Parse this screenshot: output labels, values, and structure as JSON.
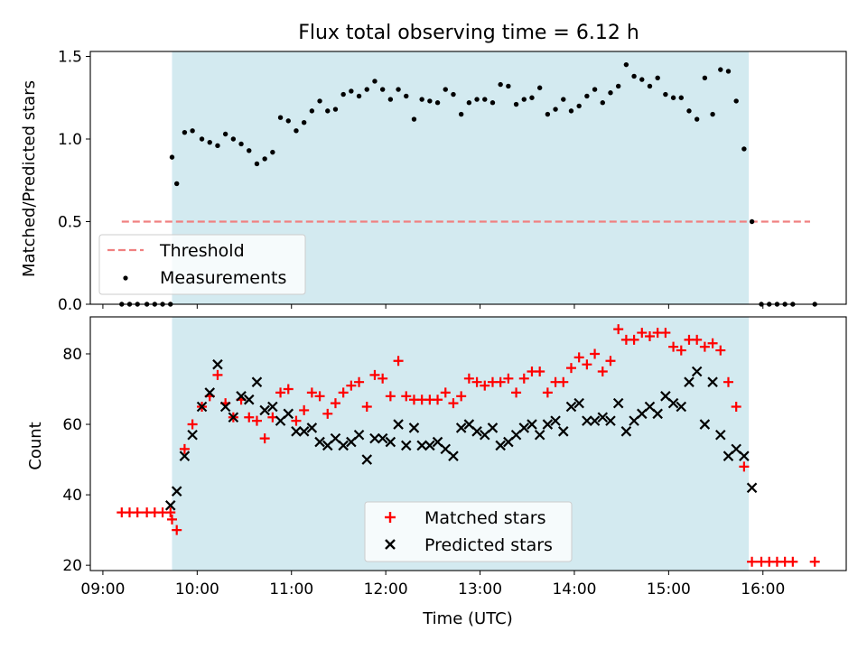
{
  "chart_data": [
    {
      "type": "scatter",
      "title": "Flux total observing time = 6.12 h",
      "ylabel": "Matched/Predicted stars",
      "xlabel": "",
      "xlim": [
        "08:52",
        "16:53"
      ],
      "ylim": [
        0,
        1.53
      ],
      "yticks": [
        "0.0",
        "0.5",
        "1.0",
        "1.5"
      ],
      "observing_window": [
        "09:44",
        "15:51"
      ],
      "shade_color": "#d3eaf0",
      "threshold": {
        "name": "Threshold",
        "value": 0.5,
        "x_range": [
          "09:12",
          "16:30"
        ],
        "color": "#f08080",
        "style": "dashed"
      },
      "series": [
        {
          "name": "Measurements",
          "color": "#000000",
          "marker": "dot",
          "x": [
            "09:12",
            "09:17",
            "09:22",
            "09:28",
            "09:33",
            "09:38",
            "09:43",
            "09:44",
            "09:47",
            "09:52",
            "09:57",
            "10:03",
            "10:08",
            "10:13",
            "10:18",
            "10:23",
            "10:28",
            "10:33",
            "10:38",
            "10:43",
            "10:48",
            "10:53",
            "10:58",
            "11:03",
            "11:08",
            "11:13",
            "11:18",
            "11:23",
            "11:28",
            "11:33",
            "11:38",
            "11:43",
            "11:48",
            "11:53",
            "11:58",
            "12:03",
            "12:08",
            "12:13",
            "12:18",
            "12:23",
            "12:28",
            "12:33",
            "12:38",
            "12:43",
            "12:48",
            "12:53",
            "12:58",
            "13:03",
            "13:08",
            "13:13",
            "13:18",
            "13:23",
            "13:28",
            "13:33",
            "13:38",
            "13:43",
            "13:48",
            "13:53",
            "13:58",
            "14:03",
            "14:08",
            "14:13",
            "14:18",
            "14:23",
            "14:28",
            "14:33",
            "14:38",
            "14:43",
            "14:48",
            "14:53",
            "14:58",
            "15:03",
            "15:08",
            "15:13",
            "15:18",
            "15:23",
            "15:28",
            "15:33",
            "15:38",
            "15:43",
            "15:48",
            "15:53",
            "15:59",
            "16:04",
            "16:09",
            "16:14",
            "16:19",
            "16:33"
          ],
          "values": [
            0,
            0,
            0,
            0,
            0,
            0,
            0,
            0.89,
            0.73,
            1.04,
            1.05,
            1.0,
            0.98,
            0.96,
            1.03,
            1.0,
            0.97,
            0.93,
            0.85,
            0.88,
            0.92,
            1.13,
            1.11,
            1.05,
            1.1,
            1.17,
            1.23,
            1.17,
            1.18,
            1.27,
            1.29,
            1.26,
            1.3,
            1.35,
            1.3,
            1.24,
            1.3,
            1.26,
            1.12,
            1.24,
            1.23,
            1.22,
            1.3,
            1.27,
            1.15,
            1.22,
            1.24,
            1.24,
            1.22,
            1.33,
            1.32,
            1.21,
            1.24,
            1.25,
            1.31,
            1.15,
            1.18,
            1.24,
            1.17,
            1.2,
            1.26,
            1.3,
            1.22,
            1.28,
            1.32,
            1.45,
            1.38,
            1.36,
            1.32,
            1.37,
            1.27,
            1.25,
            1.25,
            1.17,
            1.12,
            1.37,
            1.15,
            1.42,
            1.41,
            1.23,
            0.94,
            0.5,
            0,
            0,
            0,
            0,
            0,
            0
          ]
        }
      ]
    },
    {
      "type": "scatter",
      "title": "",
      "ylabel": "Count",
      "xlabel": "Time (UTC)",
      "xlim": [
        "08:52",
        "16:53"
      ],
      "ylim": [
        18.5,
        90.5
      ],
      "yticks": [
        "20",
        "40",
        "60",
        "80"
      ],
      "xticks": [
        "09:00",
        "10:00",
        "11:00",
        "12:00",
        "13:00",
        "14:00",
        "15:00",
        "16:00"
      ],
      "observing_window": [
        "09:44",
        "15:51"
      ],
      "shade_color": "#d3eaf0",
      "series": [
        {
          "name": "Matched stars",
          "color": "#ff0000",
          "marker": "plus",
          "x": [
            "09:12",
            "09:17",
            "09:22",
            "09:28",
            "09:33",
            "09:38",
            "09:43",
            "09:44",
            "09:47",
            "09:52",
            "09:57",
            "10:03",
            "10:08",
            "10:13",
            "10:18",
            "10:23",
            "10:28",
            "10:33",
            "10:38",
            "10:43",
            "10:48",
            "10:53",
            "10:58",
            "11:03",
            "11:08",
            "11:13",
            "11:18",
            "11:23",
            "11:28",
            "11:33",
            "11:38",
            "11:43",
            "11:48",
            "11:53",
            "11:58",
            "12:03",
            "12:08",
            "12:13",
            "12:18",
            "12:23",
            "12:28",
            "12:33",
            "12:38",
            "12:43",
            "12:48",
            "12:53",
            "12:58",
            "13:03",
            "13:08",
            "13:13",
            "13:18",
            "13:23",
            "13:28",
            "13:33",
            "13:38",
            "13:43",
            "13:48",
            "13:53",
            "13:58",
            "14:03",
            "14:08",
            "14:13",
            "14:18",
            "14:23",
            "14:28",
            "14:33",
            "14:38",
            "14:43",
            "14:48",
            "14:53",
            "14:58",
            "15:03",
            "15:08",
            "15:13",
            "15:18",
            "15:23",
            "15:28",
            "15:33",
            "15:38",
            "15:43",
            "15:48",
            "15:53",
            "15:59",
            "16:04",
            "16:09",
            "16:14",
            "16:19",
            "16:33"
          ],
          "values": [
            35,
            35,
            35,
            35,
            35,
            35,
            35,
            33,
            30,
            53,
            60,
            65,
            68,
            74,
            66,
            62,
            67,
            62,
            61,
            56,
            62,
            69,
            70,
            61,
            64,
            69,
            68,
            63,
            66,
            69,
            71,
            72,
            65,
            74,
            73,
            68,
            78,
            68,
            67,
            67,
            67,
            67,
            69,
            66,
            68,
            73,
            72,
            71,
            72,
            72,
            73,
            69,
            73,
            75,
            75,
            69,
            72,
            72,
            76,
            79,
            77,
            80,
            75,
            78,
            87,
            84,
            84,
            86,
            85,
            86,
            86,
            82,
            81,
            84,
            84,
            82,
            83,
            81,
            72,
            65,
            48,
            21,
            21,
            21,
            21,
            21,
            21,
            21
          ]
        },
        {
          "name": "Predicted stars",
          "color": "#000000",
          "marker": "x",
          "x": [
            "09:43",
            "09:47",
            "09:52",
            "09:57",
            "10:03",
            "10:08",
            "10:13",
            "10:18",
            "10:23",
            "10:28",
            "10:33",
            "10:38",
            "10:43",
            "10:48",
            "10:53",
            "10:58",
            "11:03",
            "11:08",
            "11:13",
            "11:18",
            "11:23",
            "11:28",
            "11:33",
            "11:38",
            "11:43",
            "11:48",
            "11:53",
            "11:58",
            "12:03",
            "12:08",
            "12:13",
            "12:18",
            "12:23",
            "12:28",
            "12:33",
            "12:38",
            "12:43",
            "12:48",
            "12:53",
            "12:58",
            "13:03",
            "13:08",
            "13:13",
            "13:18",
            "13:23",
            "13:28",
            "13:33",
            "13:38",
            "13:43",
            "13:48",
            "13:53",
            "13:58",
            "14:03",
            "14:08",
            "14:13",
            "14:18",
            "14:23",
            "14:28",
            "14:33",
            "14:38",
            "14:43",
            "14:48",
            "14:53",
            "14:58",
            "15:03",
            "15:08",
            "15:13",
            "15:18",
            "15:23",
            "15:28",
            "15:33",
            "15:38",
            "15:43",
            "15:48",
            "15:53"
          ],
          "values": [
            37,
            41,
            51,
            57,
            65,
            69,
            77,
            65,
            62,
            68,
            67,
            72,
            64,
            65,
            61,
            63,
            58,
            58,
            59,
            55,
            54,
            56,
            54,
            55,
            57,
            50,
            56,
            56,
            55,
            60,
            54,
            59,
            54,
            54,
            55,
            53,
            51,
            59,
            60,
            58,
            57,
            59,
            54,
            55,
            57,
            59,
            60,
            57,
            60,
            61,
            58,
            65,
            66,
            61,
            61,
            62,
            61,
            66,
            58,
            61,
            63,
            65,
            63,
            68,
            66,
            65,
            72,
            75,
            60,
            72,
            57,
            51,
            53,
            51,
            42
          ]
        }
      ]
    }
  ]
}
